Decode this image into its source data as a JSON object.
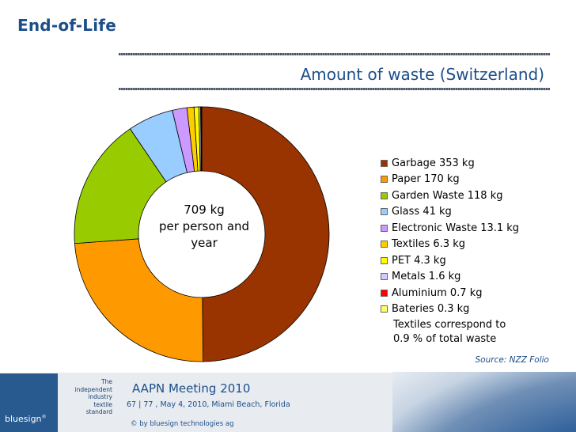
{
  "slide_title": "End-of-Life",
  "chart_title": "Amount of waste (Switzerland)",
  "center_label": [
    "709 kg",
    "per person and",
    "year"
  ],
  "chart_data": {
    "type": "pie",
    "title": "Amount of waste (Switzerland)",
    "categories": [
      "Garbage",
      "Paper",
      "Garden Waste",
      "Glass",
      "Electronic Waste",
      "Textiles",
      "PET",
      "Metals",
      "Aluminium",
      "Bateries"
    ],
    "values": [
      353,
      170,
      118,
      41,
      13.1,
      6.3,
      4.3,
      1.6,
      0.7,
      0.3
    ],
    "legend_labels": [
      "Garbage 353 kg",
      "Paper 170 kg",
      "Garden Waste 118 kg",
      "Glass 41 kg",
      "Electronic Waste 13.1 kg",
      "Textiles 6.3 kg",
      "PET 4.3 kg",
      "Metals 1.6 kg",
      "Aluminium 0.7 kg",
      "Bateries 0.3 kg"
    ],
    "colors": [
      "#993300",
      "#ff9900",
      "#99cc00",
      "#99ccff",
      "#cc99ff",
      "#ffcc00",
      "#ffff00",
      "#ccccff",
      "#ff0000",
      "#ffff66"
    ],
    "legend_position": "right",
    "style": "donut"
  },
  "note": [
    "Textiles correspond to",
    "0.9 % of total waste"
  ],
  "source": "Source: NZZ Folio",
  "footer": {
    "logo": "bluesign",
    "logo_mark": "®",
    "tagline": [
      "The",
      "independent",
      "industry",
      "textile",
      "standard"
    ],
    "meeting": "AAPN Meeting 2010",
    "meta": "67 | 77 , May 4, 2010, Miami Beach, Florida",
    "copyright": "© by bluesign technologies ag"
  }
}
